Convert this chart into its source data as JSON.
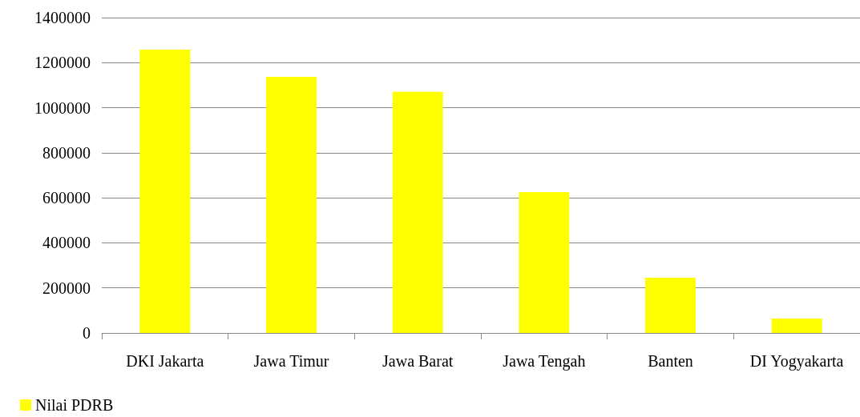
{
  "chart_data": {
    "type": "bar",
    "categories": [
      "DKI Jakarta",
      "Jawa Timur",
      "Jawa Barat",
      "Jawa Tengah",
      "Banten",
      "DI Yogyakarta"
    ],
    "series": [
      {
        "name": "Nilai PDRB",
        "color": "#ffff00",
        "values": [
          1258000,
          1137000,
          1070000,
          625000,
          245000,
          64000
        ]
      }
    ],
    "ylim": [
      0,
      1400000
    ],
    "yticks": [
      0,
      200000,
      400000,
      600000,
      800000,
      1000000,
      1200000,
      1400000
    ],
    "grid": "y",
    "legend": "bottom left"
  }
}
